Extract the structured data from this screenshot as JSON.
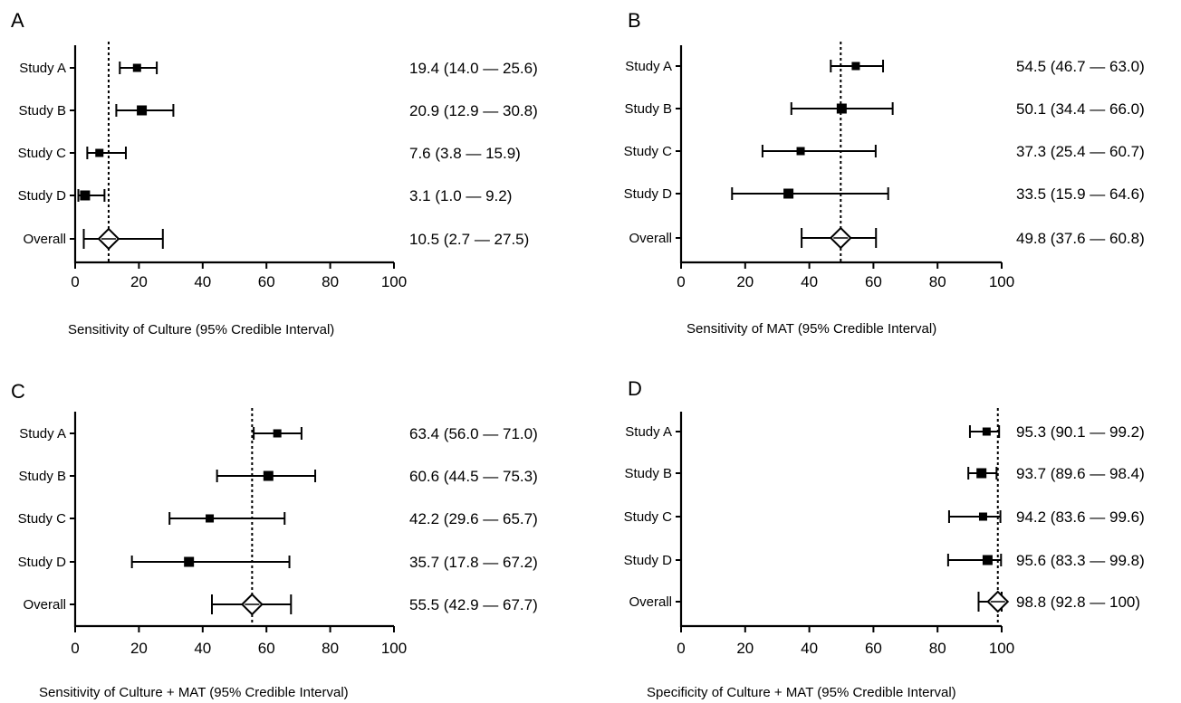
{
  "chart_data": [
    {
      "panel": "A",
      "type": "forest",
      "xlabel": "Sensitivity of Culture (95% Credible Interval)",
      "xlim": [
        0,
        100
      ],
      "xticks": [
        "0",
        "20",
        "40",
        "60",
        "80",
        "100"
      ],
      "reference_line": 10.5,
      "rows": [
        {
          "label": "Study A",
          "est": 19.4,
          "lo": 14.0,
          "hi": 25.6,
          "text": "19.4 (14.0 — 25.6)",
          "marker": "square"
        },
        {
          "label": "Study B",
          "est": 20.9,
          "lo": 12.9,
          "hi": 30.8,
          "text": "20.9 (12.9 — 30.8)",
          "marker": "square"
        },
        {
          "label": "Study C",
          "est": 7.6,
          "lo": 3.8,
          "hi": 15.9,
          "text": "7.6 (3.8 — 15.9)",
          "marker": "square"
        },
        {
          "label": "Study D",
          "est": 3.1,
          "lo": 1.0,
          "hi": 9.2,
          "text": "3.1 (1.0 —  9.2)",
          "marker": "square"
        },
        {
          "label": "Overall",
          "est": 10.5,
          "lo": 2.7,
          "hi": 27.5,
          "text": "10.5 (2.7 — 27.5)",
          "marker": "diamond"
        }
      ]
    },
    {
      "panel": "B",
      "type": "forest",
      "xlabel": "Sensitivity of MAT (95% Credible Interval)",
      "xlim": [
        0,
        100
      ],
      "xticks": [
        "0",
        "20",
        "40",
        "60",
        "80",
        "100"
      ],
      "reference_line": 49.8,
      "rows": [
        {
          "label": "Study A",
          "est": 54.5,
          "lo": 46.7,
          "hi": 63.0,
          "text": "54.5 (46.7 — 63.0)",
          "marker": "square"
        },
        {
          "label": "Study B",
          "est": 50.1,
          "lo": 34.4,
          "hi": 66.0,
          "text": "50.1 (34.4 — 66.0)",
          "marker": "square"
        },
        {
          "label": "Study C",
          "est": 37.3,
          "lo": 25.4,
          "hi": 60.7,
          "text": "37.3 (25.4 — 60.7)",
          "marker": "square"
        },
        {
          "label": "Study D",
          "est": 33.5,
          "lo": 15.9,
          "hi": 64.6,
          "text": "33.5 (15.9 — 64.6)",
          "marker": "square"
        },
        {
          "label": "Overall",
          "est": 49.8,
          "lo": 37.6,
          "hi": 60.8,
          "text": "49.8 (37.6 — 60.8)",
          "marker": "diamond"
        }
      ]
    },
    {
      "panel": "C",
      "type": "forest",
      "xlabel": "Sensitivity of Culture + MAT (95% Credible Interval)",
      "xlim": [
        0,
        100
      ],
      "xticks": [
        "0",
        "20",
        "40",
        "60",
        "80",
        "100"
      ],
      "reference_line": 55.5,
      "rows": [
        {
          "label": "Study A",
          "est": 63.4,
          "lo": 56.0,
          "hi": 71.0,
          "text": "63.4 (56.0 — 71.0)",
          "marker": "square"
        },
        {
          "label": "Study B",
          "est": 60.6,
          "lo": 44.5,
          "hi": 75.3,
          "text": "60.6 (44.5 — 75.3)",
          "marker": "square"
        },
        {
          "label": "Study C",
          "est": 42.2,
          "lo": 29.6,
          "hi": 65.7,
          "text": "42.2 (29.6 — 65.7)",
          "marker": "square"
        },
        {
          "label": "Study D",
          "est": 35.7,
          "lo": 17.8,
          "hi": 67.2,
          "text": "35.7 (17.8 — 67.2)",
          "marker": "square"
        },
        {
          "label": "Overall",
          "est": 55.5,
          "lo": 42.9,
          "hi": 67.7,
          "text": "55.5 (42.9 — 67.7)",
          "marker": "diamond"
        }
      ]
    },
    {
      "panel": "D",
      "type": "forest",
      "xlabel": "Specificity of Culture + MAT (95% Credible Interval)",
      "xlim": [
        0,
        100
      ],
      "xticks": [
        "0",
        "20",
        "40",
        "60",
        "80",
        "100"
      ],
      "reference_line": 98.8,
      "rows": [
        {
          "label": "Study A",
          "est": 95.3,
          "lo": 90.1,
          "hi": 99.2,
          "text": "95.3 (90.1 — 99.2)",
          "marker": "square"
        },
        {
          "label": "Study B",
          "est": 93.7,
          "lo": 89.6,
          "hi": 98.4,
          "text": "93.7 (89.6 — 98.4)",
          "marker": "square"
        },
        {
          "label": "Study C",
          "est": 94.2,
          "lo": 83.6,
          "hi": 99.6,
          "text": "94.2 (83.6 — 99.6)",
          "marker": "square"
        },
        {
          "label": "Study D",
          "est": 95.6,
          "lo": 83.3,
          "hi": 99.8,
          "text": "95.6 (83.3 — 99.8)",
          "marker": "square"
        },
        {
          "label": "Overall",
          "est": 98.8,
          "lo": 92.8,
          "hi": 100,
          "text": "98.8 (92.8 — 100)",
          "marker": "diamond"
        }
      ]
    }
  ]
}
